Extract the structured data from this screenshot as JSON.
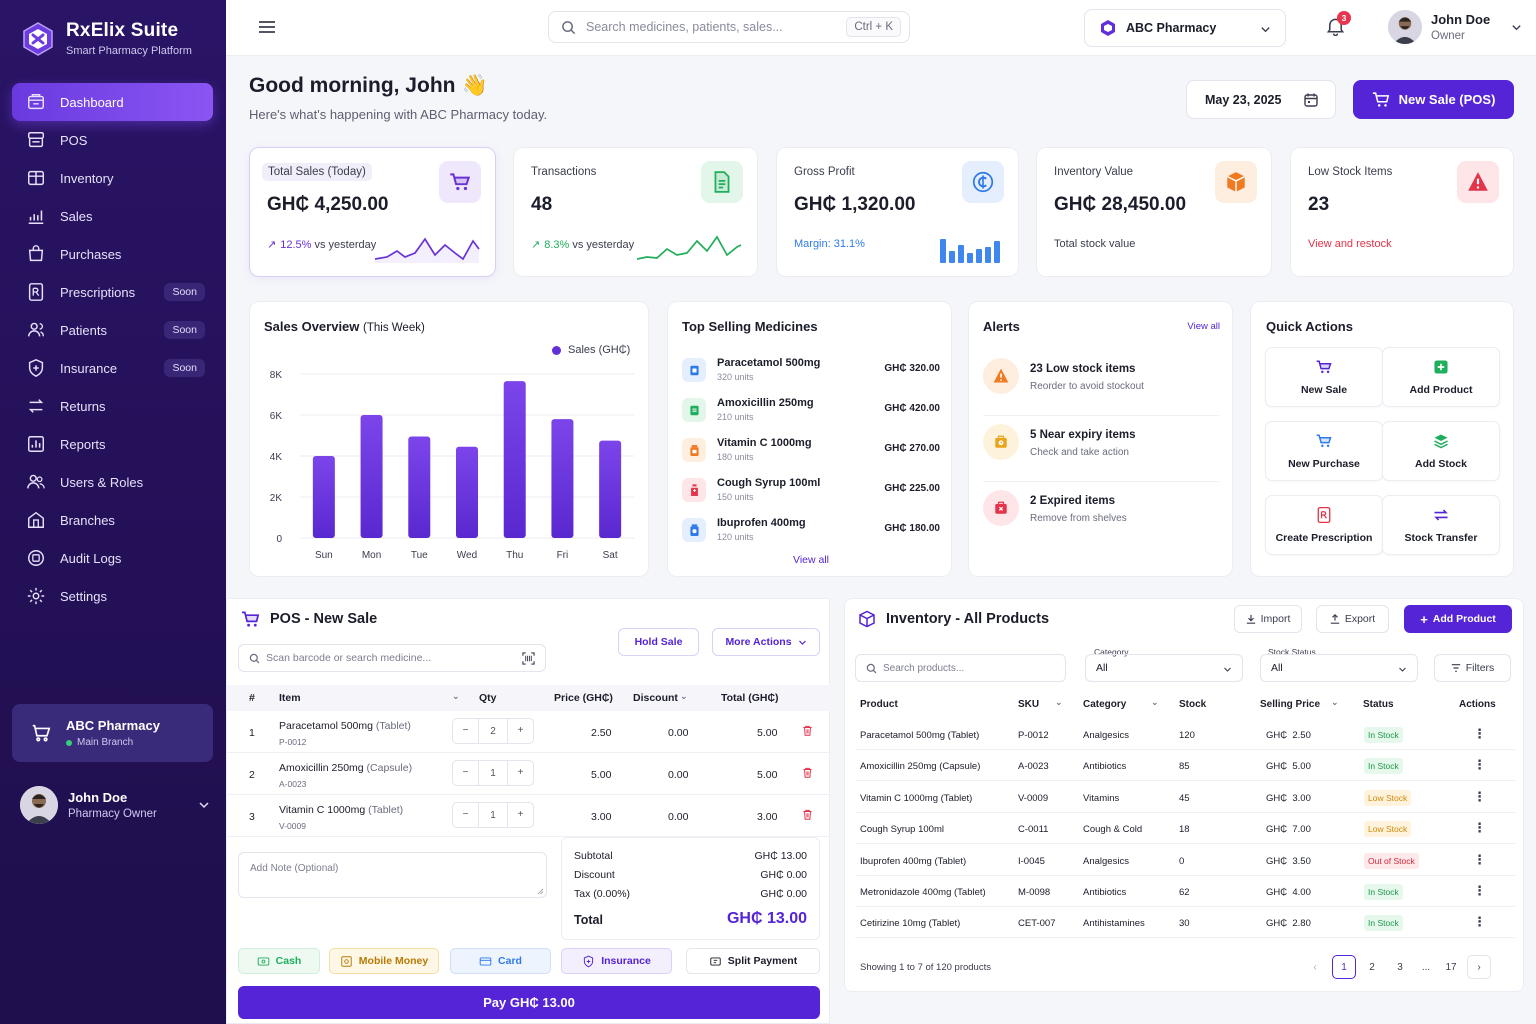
{
  "brand": {
    "name": "RxElix Suite",
    "tagline": "Smart Pharmacy Platform"
  },
  "nav": [
    {
      "label": "Dashboard",
      "icon": "dashboard-icon",
      "active": true
    },
    {
      "label": "POS",
      "icon": "register-icon"
    },
    {
      "label": "Inventory",
      "icon": "inventory-icon"
    },
    {
      "label": "Sales",
      "icon": "sales-chart-icon"
    },
    {
      "label": "Purchases",
      "icon": "bag-icon"
    },
    {
      "label": "Prescriptions",
      "icon": "prescription-icon",
      "badge": "Soon"
    },
    {
      "label": "Patients",
      "icon": "patients-icon",
      "badge": "Soon"
    },
    {
      "label": "Insurance",
      "icon": "insurance-icon",
      "badge": "Soon"
    },
    {
      "label": "Returns",
      "icon": "returns-icon"
    },
    {
      "label": "Reports",
      "icon": "reports-icon"
    },
    {
      "label": "Users & Roles",
      "icon": "users-icon"
    },
    {
      "label": "Branches",
      "icon": "branches-icon"
    },
    {
      "label": "Audit Logs",
      "icon": "audit-icon"
    },
    {
      "label": "Settings",
      "icon": "settings-icon"
    }
  ],
  "branch_card": {
    "name": "ABC Pharmacy",
    "branch": "Main Branch"
  },
  "side_user": {
    "name": "John Doe",
    "role": "Pharmacy Owner"
  },
  "topbar": {
    "search_placeholder": "Search medicines, patients, sales...",
    "shortcut": "Ctrl + K",
    "pharmacy": "ABC Pharmacy",
    "notifications": "3",
    "user_name": "John Doe",
    "user_role": "Owner"
  },
  "greeting": {
    "title": "Good morning, John",
    "emoji": "👋",
    "subtitle": "Here's what's happening with ABC Pharmacy today."
  },
  "date": "May 23, 2025",
  "new_sale_btn": "New Sale (POS)",
  "stats": [
    {
      "label": "Total Sales (Today)",
      "value": "GH₵ 4,250.00",
      "foot": "12.5% vs yesterday",
      "color": "#6a32d6",
      "bg": "#efe8fc",
      "icon": "cart-icon"
    },
    {
      "label": "Transactions",
      "value": "48",
      "foot": "8.3% vs yesterday",
      "color": "#1fae5b",
      "bg": "#e3f6ea",
      "icon": "document-icon"
    },
    {
      "label": "Gross Profit",
      "value": "GH₵ 1,320.00",
      "foot": "Margin: 31.1%",
      "color": "#2f7ae8",
      "bg": "#e4eefc",
      "icon": "cedi-coin-icon"
    },
    {
      "label": "Inventory Value",
      "value": "GH₵ 28,450.00",
      "foot": "Total stock value",
      "color": "#f07a20",
      "bg": "#fdeedf",
      "icon": "box-icon"
    },
    {
      "label": "Low Stock Items",
      "value": "23",
      "foot": "View and restock",
      "color": "#e3344a",
      "bg": "#fde5e8",
      "icon": "warning-icon"
    }
  ],
  "sales_overview": {
    "title": "Sales Overview",
    "period": "(This Week)"
  },
  "chart_data": {
    "type": "bar",
    "title": "Sales Overview (This Week)",
    "categories": [
      "Sun",
      "Mon",
      "Tue",
      "Wed",
      "Thu",
      "Fri",
      "Sat"
    ],
    "series": [
      {
        "name": "Sales (GH₵)",
        "values": [
          4000,
          6000,
          4950,
          4450,
          7650,
          5800,
          4750
        ],
        "color": "#6230d9"
      }
    ],
    "yticks": [
      "0",
      "2K",
      "4K",
      "6K",
      "8K"
    ],
    "ylim": [
      0,
      8000
    ],
    "grid": true,
    "legend": "top-right"
  },
  "top_selling": {
    "title": "Top Selling Medicines",
    "view_all": "View all",
    "items": [
      {
        "name": "Paracetamol 500mg",
        "units": "320 units",
        "price": "GH₵ 320.00",
        "color": "#2f7ae8",
        "bg": "#e4eefc",
        "icon": "pill-box-icon"
      },
      {
        "name": "Amoxicillin 250mg",
        "units": "210 units",
        "price": "GH₵ 420.00",
        "color": "#1fae5b",
        "bg": "#e3f6ea",
        "icon": "capsule-box-icon"
      },
      {
        "name": "Vitamin C 1000mg",
        "units": "180 units",
        "price": "GH₵ 270.00",
        "color": "#f07a20",
        "bg": "#fdeedf",
        "icon": "vitamin-bottle-icon"
      },
      {
        "name": "Cough Syrup 100ml",
        "units": "150 units",
        "price": "GH₵ 225.00",
        "color": "#e3344a",
        "bg": "#fde5e8",
        "icon": "syrup-bottle-icon"
      },
      {
        "name": "Ibuprofen 400mg",
        "units": "120 units",
        "price": "GH₵ 180.00",
        "color": "#2f7ae8",
        "bg": "#e4eefc",
        "icon": "tablet-bottle-icon"
      }
    ]
  },
  "alerts": {
    "title": "Alerts",
    "view_all": "View all",
    "items": [
      {
        "title": "23 Low stock items",
        "sub": "Reorder to avoid stockout",
        "color": "#f07a20",
        "bg": "#fdeedf",
        "icon": "warning-icon"
      },
      {
        "title": "5 Near expiry items",
        "sub": "Check and take action",
        "color": "#e9a41a",
        "bg": "#fdf3dc",
        "icon": "clock-box-icon"
      },
      {
        "title": "2 Expired items",
        "sub": "Remove from shelves",
        "color": "#e3344a",
        "bg": "#fde5e8",
        "icon": "expired-box-icon"
      }
    ]
  },
  "quick_actions": {
    "title": "Quick Actions",
    "items": [
      {
        "label": "New Sale",
        "color": "#5424d6",
        "icon": "cart-icon"
      },
      {
        "label": "Add Product",
        "color": "#1fae5b",
        "icon": "plus-square-icon"
      },
      {
        "label": "New Purchase",
        "color": "#2f7ae8",
        "icon": "cart-icon"
      },
      {
        "label": "Add Stock",
        "color": "#1fae5b",
        "icon": "layers-icon"
      },
      {
        "label": "Create Prescription",
        "color": "#e3344a",
        "icon": "prescription-icon"
      },
      {
        "label": "Stock Transfer",
        "color": "#5424d6",
        "icon": "transfer-icon"
      }
    ]
  },
  "pos": {
    "title": "POS - New Sale",
    "search_placeholder": "Scan barcode or search medicine...",
    "hold": "Hold Sale",
    "more": "More Actions",
    "columns": [
      "#",
      "Item",
      "Qty",
      "Price (GH₵)",
      "Discount",
      "Total (GH₵)"
    ],
    "rows": [
      {
        "n": "1",
        "name": "Paracetamol 500mg",
        "form": "(Tablet)",
        "code": "P-0012",
        "qty": "2",
        "price": "2.50",
        "discount": "0.00",
        "total": "5.00"
      },
      {
        "n": "2",
        "name": "Amoxicillin 250mg",
        "form": "(Capsule)",
        "code": "A-0023",
        "qty": "1",
        "price": "5.00",
        "discount": "0.00",
        "total": "5.00"
      },
      {
        "n": "3",
        "name": "Vitamin C 1000mg",
        "form": "(Tablet)",
        "code": "V-0009",
        "qty": "1",
        "price": "3.00",
        "discount": "0.00",
        "total": "3.00"
      }
    ],
    "note_placeholder": "Add Note (Optional)",
    "totals": {
      "subtotal_label": "Subtotal",
      "subtotal": "GH₵ 13.00",
      "discount_label": "Discount",
      "discount": "GH₵ 0.00",
      "tax_label": "Tax (0.00%)",
      "tax": "GH₵ 0.00",
      "total_label": "Total",
      "total": "GH₵ 13.00"
    },
    "pay_methods": [
      {
        "label": "Cash",
        "color": "#1fae5b",
        "bg": "#eef9f2",
        "border": "#cfeedc",
        "icon": "cash-icon"
      },
      {
        "label": "Mobile Money",
        "color": "#b67a06",
        "bg": "#fff7e6",
        "border": "#f5dea6",
        "icon": "mobile-money-icon"
      },
      {
        "label": "Card",
        "color": "#2f7ae8",
        "bg": "#eef4fd",
        "border": "#cfe0f8",
        "icon": "card-icon"
      },
      {
        "label": "Insurance",
        "color": "#5424d6",
        "bg": "#f3effd",
        "border": "#dcd2f6",
        "icon": "insurance-icon"
      },
      {
        "label": "Split Payment",
        "color": "#1b1d2a",
        "bg": "#ffffff",
        "border": "#e3e4ec",
        "icon": "split-icon"
      }
    ],
    "pay_btn": "Pay GH₵ 13.00"
  },
  "inventory": {
    "title": "Inventory - All Products",
    "import": "Import",
    "export": "Export",
    "add": "Add Product",
    "search_placeholder": "Search products...",
    "category_label": "Category",
    "category_value": "All",
    "status_label": "Stock Status",
    "status_value": "All",
    "filters": "Filters",
    "columns": [
      "Product",
      "SKU",
      "Category",
      "Stock",
      "Selling Price",
      "Status",
      "Actions"
    ],
    "rows": [
      {
        "product": "Paracetamol 500mg (Tablet)",
        "sku": "P-0012",
        "category": "Analgesics",
        "stock": "120",
        "price": "GH₵  2.50",
        "status": "In Stock",
        "st": "in"
      },
      {
        "product": "Amoxicillin 250mg (Capsule)",
        "sku": "A-0023",
        "category": "Antibiotics",
        "stock": "85",
        "price": "GH₵  5.00",
        "status": "In Stock",
        "st": "in"
      },
      {
        "product": "Vitamin C 1000mg (Tablet)",
        "sku": "V-0009",
        "category": "Vitamins",
        "stock": "45",
        "price": "GH₵  3.00",
        "status": "Low Stock",
        "st": "low"
      },
      {
        "product": "Cough Syrup 100ml",
        "sku": "C-0011",
        "category": "Cough & Cold",
        "stock": "18",
        "price": "GH₵  7.00",
        "status": "Low Stock",
        "st": "low"
      },
      {
        "product": "Ibuprofen 400mg (Tablet)",
        "sku": "I-0045",
        "category": "Analgesics",
        "stock": "0",
        "price": "GH₵  3.50",
        "status": "Out of Stock",
        "st": "out"
      },
      {
        "product": "Metronidazole 400mg (Tablet)",
        "sku": "M-0098",
        "category": "Antibiotics",
        "stock": "62",
        "price": "GH₵  4.00",
        "status": "In Stock",
        "st": "in"
      },
      {
        "product": "Cetirizine 10mg (Tablet)",
        "sku": "CET-007",
        "category": "Antihistamines",
        "stock": "30",
        "price": "GH₵  2.80",
        "status": "In Stock",
        "st": "in"
      }
    ],
    "showing": "Showing 1 to 7 of 120 products",
    "pages": [
      "1",
      "2",
      "3",
      "...",
      "17"
    ]
  }
}
